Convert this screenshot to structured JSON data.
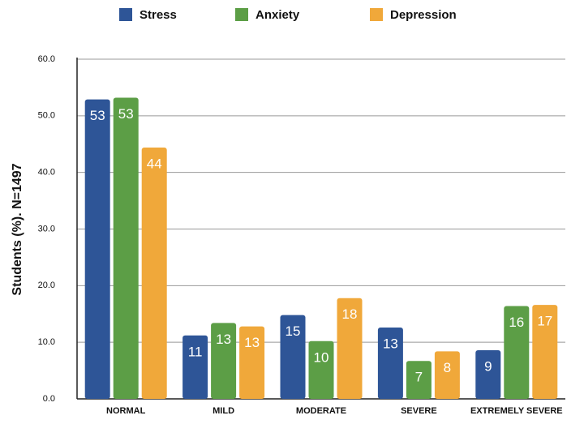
{
  "chart_data": {
    "type": "bar",
    "y_label": "Students (%). N=1497",
    "categories": [
      "NORMAL",
      "MILD",
      "MODERATE",
      "SEVERE",
      "EXTREMELY SEVERE"
    ],
    "series": [
      {
        "name": "Stress",
        "color": "#2e5597",
        "values": [
          52.9,
          11.2,
          14.8,
          12.6,
          8.6
        ],
        "value_labels": [
          "53",
          "11",
          "15",
          "13",
          "9"
        ]
      },
      {
        "name": "Anxiety",
        "color": "#5c9e46",
        "values": [
          53.2,
          13.4,
          10.2,
          6.7,
          16.4
        ],
        "value_labels": [
          "53",
          "13",
          "10",
          "7",
          "16"
        ]
      },
      {
        "name": "Depression",
        "color": "#f0a83a",
        "values": [
          44.4,
          12.8,
          17.8,
          8.4,
          16.6
        ],
        "value_labels": [
          "44",
          "13",
          "18",
          "8",
          "17"
        ]
      }
    ],
    "ylim": [
      0,
      60
    ],
    "yticks": [
      {
        "value": 0,
        "label": "0.0"
      },
      {
        "value": 10,
        "label": "10.0"
      },
      {
        "value": 20,
        "label": "20.0"
      },
      {
        "value": 30,
        "label": "30.0"
      },
      {
        "value": 40,
        "label": "40.0"
      },
      {
        "value": 50,
        "label": "50.0"
      },
      {
        "value": 60,
        "label": "60.0"
      }
    ],
    "grid": true,
    "legend": "top"
  }
}
